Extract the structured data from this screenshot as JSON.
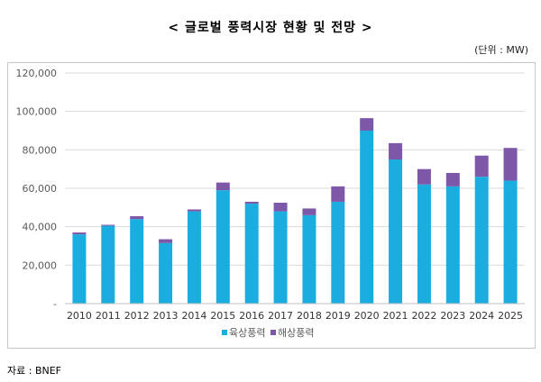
{
  "title": "< 글로벌 풍력시장 현황 및 전망 >",
  "unit": "(단위 : MW)",
  "source": "자료 : BNEF",
  "colors": {
    "onshore": "#1aaee0",
    "offshore": "#7e58a8",
    "grid": "#d9d9d9",
    "text": "#595959"
  },
  "chart_data": {
    "type": "bar",
    "stacked": true,
    "categories": [
      "2010",
      "2011",
      "2012",
      "2013",
      "2014",
      "2015",
      "2016",
      "2017",
      "2018",
      "2019",
      "2020",
      "2021",
      "2022",
      "2023",
      "2024",
      "2025"
    ],
    "series": [
      {
        "name": "육상풍력",
        "values": [
          36000,
          40500,
          44000,
          31500,
          48000,
          59000,
          52000,
          48000,
          46000,
          53000,
          90000,
          75000,
          62000,
          61000,
          66000,
          64000
        ]
      },
      {
        "name": "해상풍력",
        "values": [
          1000,
          500,
          1500,
          2000,
          1000,
          4000,
          1000,
          4500,
          3500,
          8000,
          6500,
          8500,
          8000,
          7000,
          11000,
          17000
        ]
      }
    ],
    "y_ticks": [
      "-",
      "20,000",
      "40,000",
      "60,000",
      "80,000",
      "100,000",
      "120,000"
    ],
    "ylim": [
      0,
      120000
    ],
    "grid": true,
    "legend_position": "bottom-center"
  }
}
